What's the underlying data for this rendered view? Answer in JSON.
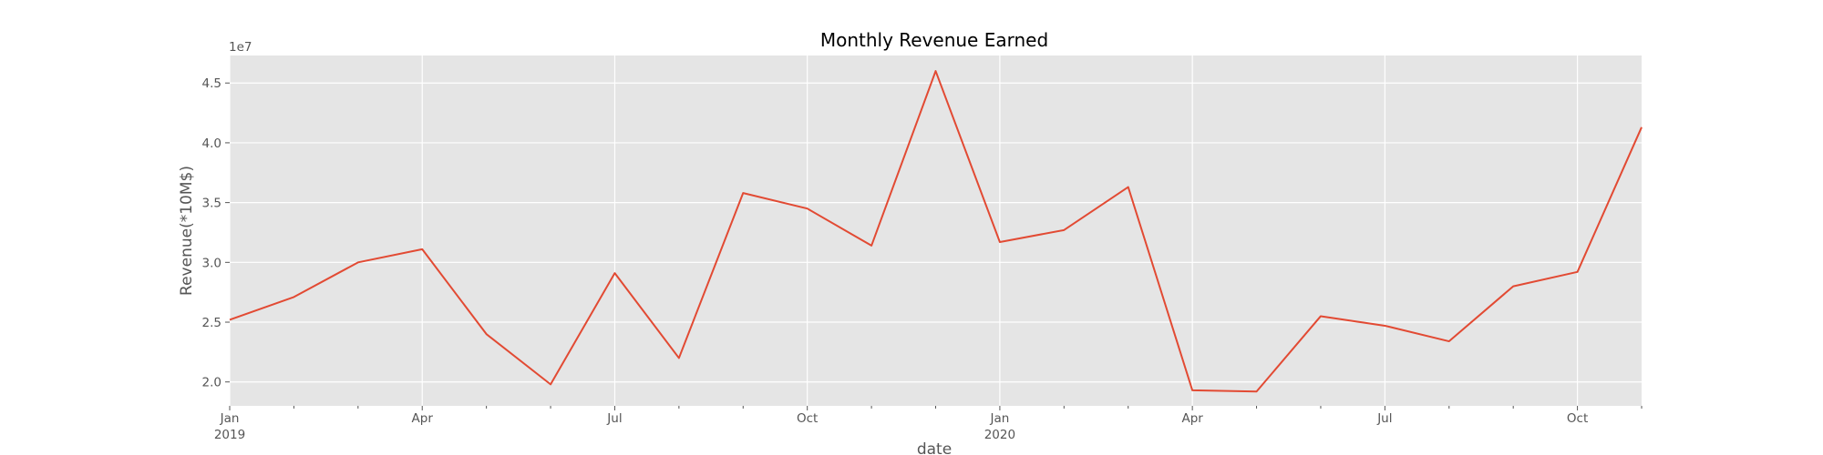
{
  "chart_data": {
    "type": "line",
    "title": "Monthly Revenue Earned",
    "xlabel": "date",
    "ylabel": "Revenue(*10M$)",
    "y_offset_label": "1e7",
    "x": [
      "2019-01",
      "2019-02",
      "2019-03",
      "2019-04",
      "2019-05",
      "2019-06",
      "2019-07",
      "2019-08",
      "2019-09",
      "2019-10",
      "2019-11",
      "2019-12",
      "2020-01",
      "2020-02",
      "2020-03",
      "2020-04",
      "2020-05",
      "2020-06",
      "2020-07",
      "2020-08",
      "2020-09",
      "2020-10",
      "2020-11"
    ],
    "series": [
      {
        "values": [
          25200000,
          27100000,
          30000000,
          31100000,
          24000000,
          19800000,
          29100000,
          22000000,
          35800000,
          34500000,
          31400000,
          46000000,
          31700000,
          32700000,
          36300000,
          19300000,
          19200000,
          25500000,
          24700000,
          23400000,
          28000000,
          29200000,
          41300000
        ],
        "color": "#E24A33"
      }
    ],
    "ylim": [
      18000000,
      47300000
    ],
    "yticks": [
      {
        "value": 20000000,
        "label": "2.0"
      },
      {
        "value": 25000000,
        "label": "2.5"
      },
      {
        "value": 30000000,
        "label": "3.0"
      },
      {
        "value": 35000000,
        "label": "3.5"
      },
      {
        "value": 40000000,
        "label": "4.0"
      },
      {
        "value": 45000000,
        "label": "4.5"
      }
    ],
    "xticks_major": [
      {
        "month": 0,
        "label": "Jan",
        "sublabel": "2019"
      },
      {
        "month": 3,
        "label": "Apr",
        "sublabel": ""
      },
      {
        "month": 6,
        "label": "Jul",
        "sublabel": ""
      },
      {
        "month": 9,
        "label": "Oct",
        "sublabel": ""
      },
      {
        "month": 12,
        "label": "Jan",
        "sublabel": "2020"
      },
      {
        "month": 15,
        "label": "Apr",
        "sublabel": ""
      },
      {
        "month": 18,
        "label": "Jul",
        "sublabel": ""
      },
      {
        "month": 21,
        "label": "Oct",
        "sublabel": ""
      }
    ],
    "grid": true,
    "style": "ggplot",
    "background_color": "#E5E5E5"
  }
}
